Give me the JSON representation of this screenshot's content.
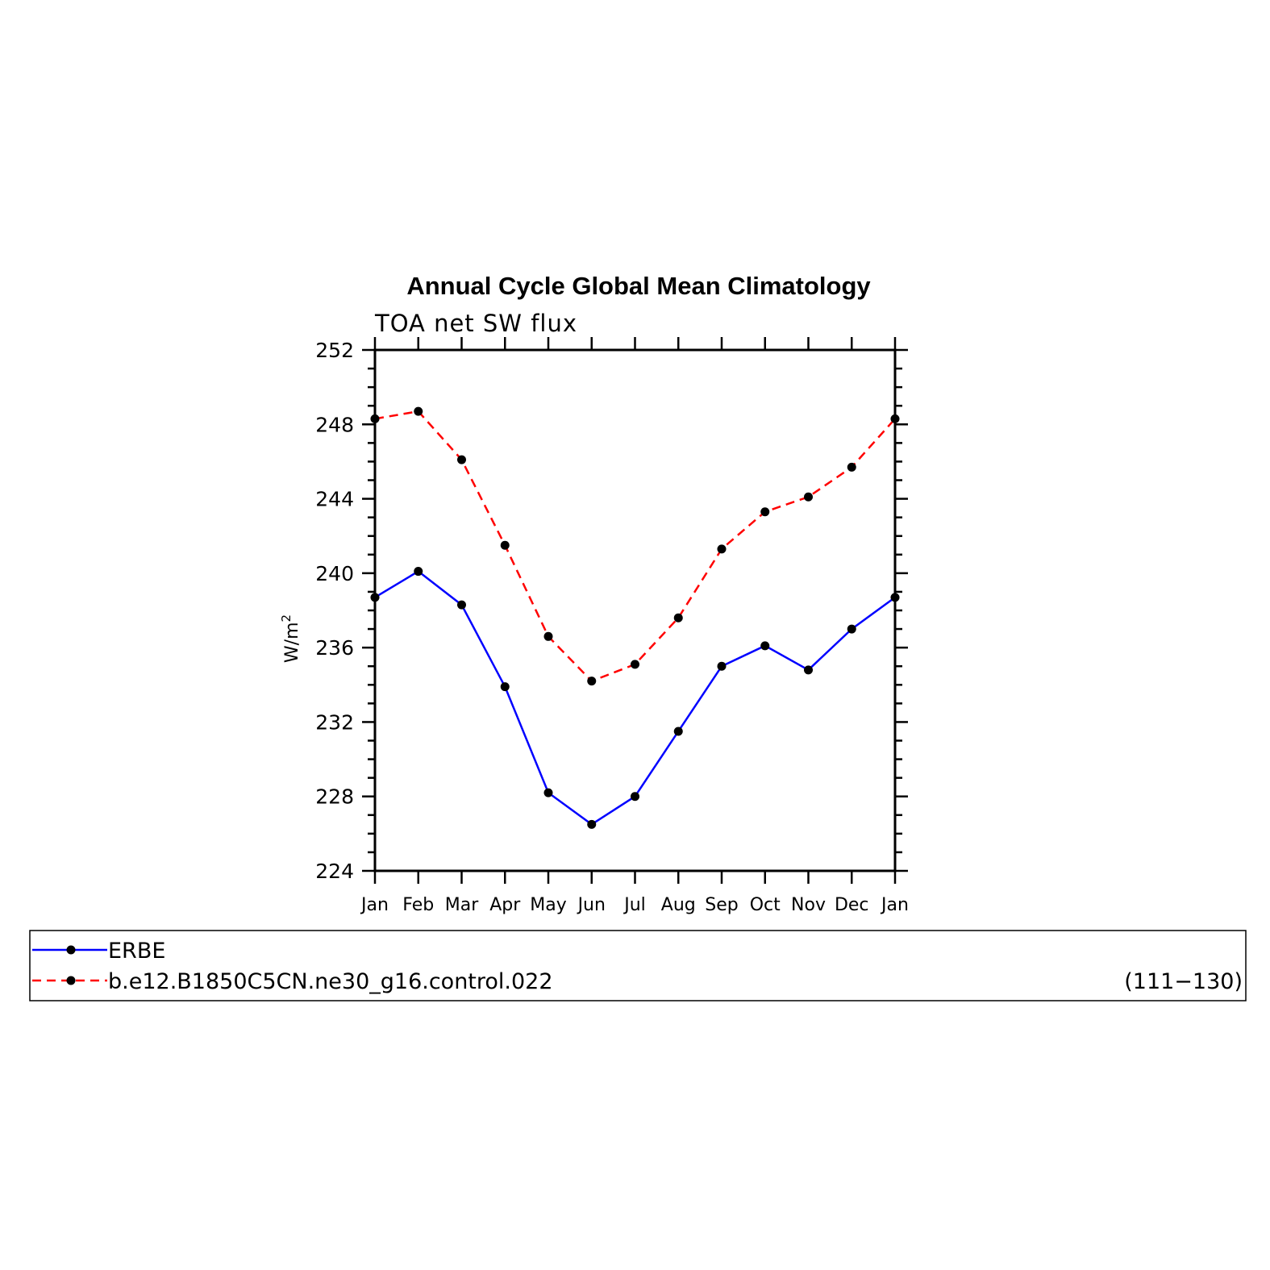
{
  "chart_data": {
    "type": "line",
    "title": "Annual Cycle Global Mean Climatology",
    "subtitle": "TOA net SW flux",
    "xlabel": "",
    "ylabel_base": "W/m",
    "ylabel_sup": "2",
    "categories": [
      "Jan",
      "Feb",
      "Mar",
      "Apr",
      "May",
      "Jun",
      "Jul",
      "Aug",
      "Sep",
      "Oct",
      "Nov",
      "Dec",
      "Jan"
    ],
    "ylim": [
      224,
      252
    ],
    "yticks": [
      "224",
      "228",
      "232",
      "236",
      "240",
      "244",
      "248",
      "252"
    ],
    "grid": false,
    "legend_position": "bottom",
    "series": [
      {
        "name": "ERBE",
        "color": "#0000ff",
        "style": "solid",
        "values": [
          238.7,
          240.1,
          238.3,
          233.9,
          228.2,
          226.5,
          228.0,
          231.5,
          235.0,
          236.1,
          234.8,
          237.0,
          238.7
        ]
      },
      {
        "name": "b.e12.B1850C5CN.ne30_g16.control.022",
        "color": "#ff0000",
        "style": "dashed",
        "values": [
          248.3,
          248.7,
          246.1,
          241.5,
          236.6,
          234.2,
          235.1,
          237.6,
          241.3,
          243.3,
          244.1,
          245.7,
          248.3
        ]
      }
    ],
    "legend_note": "(111−130)"
  }
}
